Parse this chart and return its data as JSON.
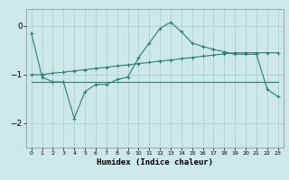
{
  "xlabel": "Humidex (Indice chaleur)",
  "bg_color": "#cce8e8",
  "line_color": "#2e7d72",
  "grid_color": "#aacccc",
  "xlim": [
    -0.5,
    23.5
  ],
  "ylim": [
    -2.5,
    0.35
  ],
  "yticks": [
    0,
    -1,
    -2
  ],
  "xticks": [
    0,
    1,
    2,
    3,
    4,
    5,
    6,
    7,
    8,
    9,
    10,
    11,
    12,
    13,
    14,
    15,
    16,
    17,
    18,
    19,
    20,
    21,
    22,
    23
  ],
  "curve1_x": [
    0,
    1,
    2,
    3,
    4,
    5,
    6,
    7,
    8,
    9,
    10,
    11,
    12,
    13,
    14,
    15,
    16,
    17,
    18,
    19,
    20,
    21,
    22,
    23
  ],
  "curve1_y": [
    -0.15,
    -1.05,
    -1.15,
    -1.15,
    -1.9,
    -1.35,
    -1.2,
    -1.2,
    -1.1,
    -1.05,
    -0.65,
    -0.35,
    -0.05,
    0.08,
    -0.12,
    -0.35,
    -0.42,
    -0.48,
    -0.53,
    -0.58,
    -0.58,
    -0.58,
    -1.3,
    -1.45
  ],
  "curve2_x": [
    0,
    1,
    2,
    3,
    4,
    5,
    6,
    7,
    8,
    9,
    10,
    11,
    12,
    13,
    14,
    15,
    16,
    17,
    18,
    19,
    20,
    21,
    22,
    23
  ],
  "curve2_y": [
    -1.0,
    -1.0,
    -0.97,
    -0.95,
    -0.92,
    -0.9,
    -0.87,
    -0.85,
    -0.82,
    -0.8,
    -0.77,
    -0.75,
    -0.72,
    -0.7,
    -0.67,
    -0.65,
    -0.62,
    -0.6,
    -0.57,
    -0.55,
    -0.55,
    -0.55,
    -0.55,
    -0.55
  ],
  "curve3_x": [
    0,
    23
  ],
  "curve3_y": [
    -1.15,
    -1.15
  ],
  "marker_size": 2.5,
  "lw": 0.8
}
